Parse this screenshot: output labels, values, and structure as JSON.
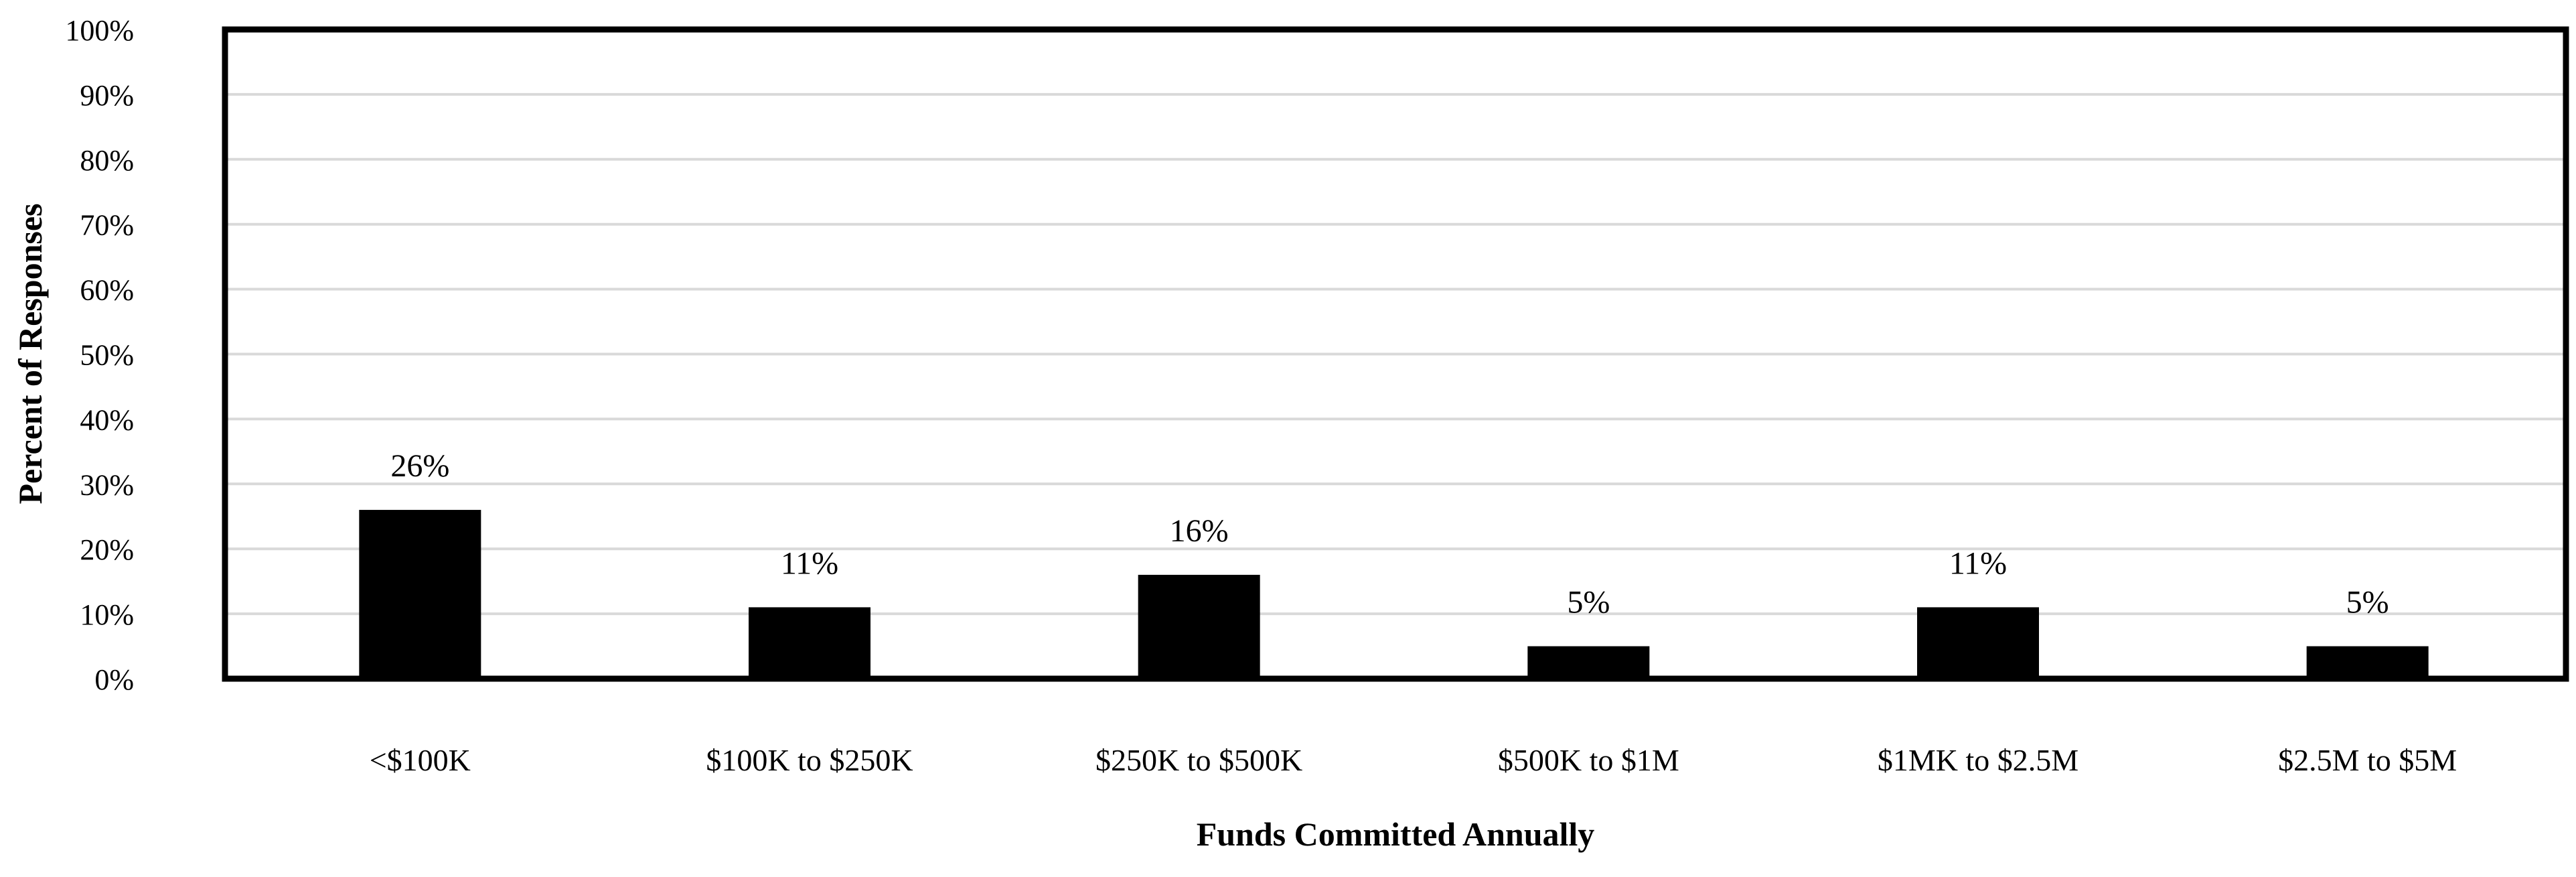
{
  "chart_data": {
    "type": "bar",
    "title": "",
    "xlabel": "Funds Committed Annually",
    "ylabel": "Percent of Responses",
    "categories": [
      "<$100K",
      "$100K to $250K",
      "$250K to $500K",
      "$500K to $1M",
      "$1MK to $2.5M",
      "$2.5M to $5M"
    ],
    "values": [
      26,
      11,
      16,
      5,
      11,
      5
    ],
    "data_labels": [
      "26%",
      "11%",
      "16%",
      "5%",
      "11%",
      "5%"
    ],
    "ylim": [
      0,
      100
    ],
    "yticks": [
      0,
      10,
      20,
      30,
      40,
      50,
      60,
      70,
      80,
      90,
      100
    ],
    "ytick_labels": [
      "0%",
      "10%",
      "20%",
      "30%",
      "40%",
      "50%",
      "60%",
      "70%",
      "80%",
      "90%",
      "100%"
    ],
    "grid": true,
    "legend": "none",
    "colors": {
      "bar": "#000000",
      "grid": "#d9d9d9",
      "frame": "#000000"
    }
  }
}
